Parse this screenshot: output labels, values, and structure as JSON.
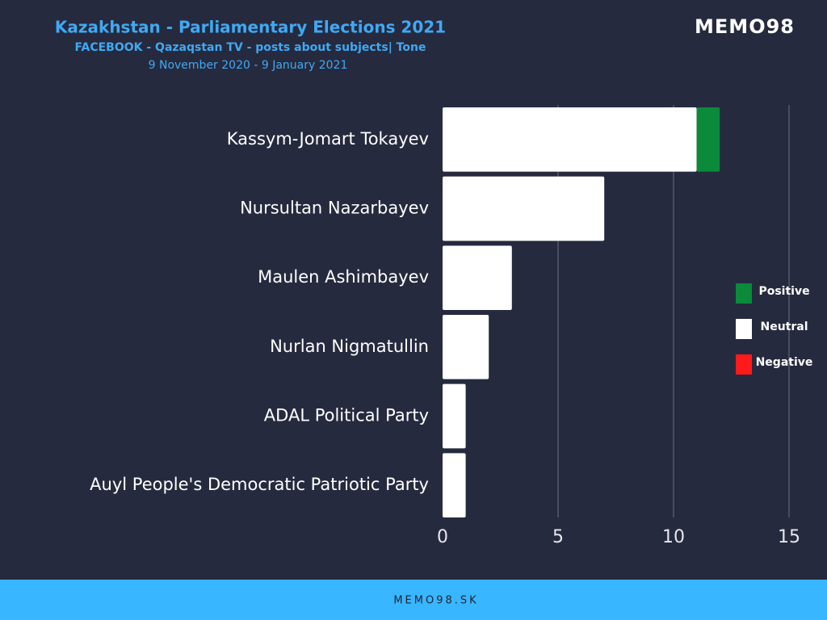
{
  "chart_data": {
    "type": "stacked-bar-horizontal",
    "title": "Kazakhstan - Parliamentary Elections 2021",
    "subtitle": "FACEBOOK - Qazaqstan TV - posts about subjects| Tone",
    "date_range": "9 November 2020 - 9 January 2021",
    "categories": [
      "Kassym-Jomart Tokayev",
      "Nursultan Nazarbayev",
      "Maulen Ashimbayev",
      "Nurlan Nigmatullin",
      "ADAL Political Party",
      "Auyl People's Democratic Patriotic Party"
    ],
    "series": [
      {
        "name": "Positive",
        "color": "#0a8a3a",
        "values": [
          1,
          0,
          0,
          0,
          0,
          0
        ]
      },
      {
        "name": "Neutral",
        "color": "#ffffff",
        "values": [
          11,
          7,
          3,
          2,
          1,
          1
        ]
      },
      {
        "name": "Negative",
        "color": "#ff1a1a",
        "values": [
          0,
          0,
          0,
          0,
          0,
          0
        ]
      }
    ],
    "xlim": [
      0,
      15
    ],
    "xticks": [
      0,
      5,
      10,
      15
    ],
    "grid": true,
    "legend": "right"
  },
  "logo": "MEMO98",
  "footer": "MEMO98.SK"
}
